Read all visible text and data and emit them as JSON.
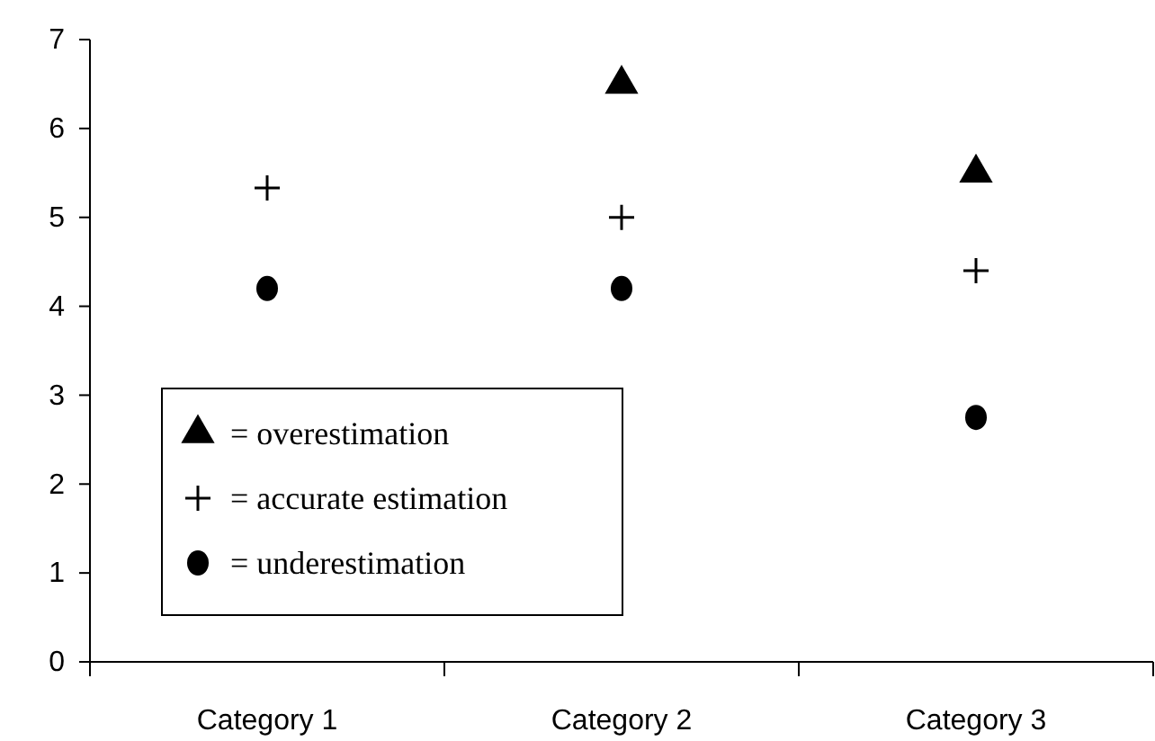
{
  "chart_data": {
    "type": "scatter",
    "categories": [
      "Category 1",
      "Category 2",
      "Category 3"
    ],
    "series": [
      {
        "name": "= overestimation",
        "color": "#000000",
        "marker": "triangle",
        "values": [
          null,
          6.5,
          5.5
        ]
      },
      {
        "name": "= accurate estimation",
        "color": "#000000",
        "marker": "cross",
        "values": [
          5.33,
          5.0,
          4.4
        ]
      },
      {
        "name": "= underestimation",
        "color": "#000000",
        "marker": "circle",
        "values": [
          4.2,
          4.2,
          2.75
        ]
      }
    ],
    "ylim": [
      0,
      7
    ],
    "yticks": [
      0,
      1,
      2,
      3,
      4,
      5,
      6,
      7
    ],
    "grid": false,
    "legend": "bottom left"
  }
}
